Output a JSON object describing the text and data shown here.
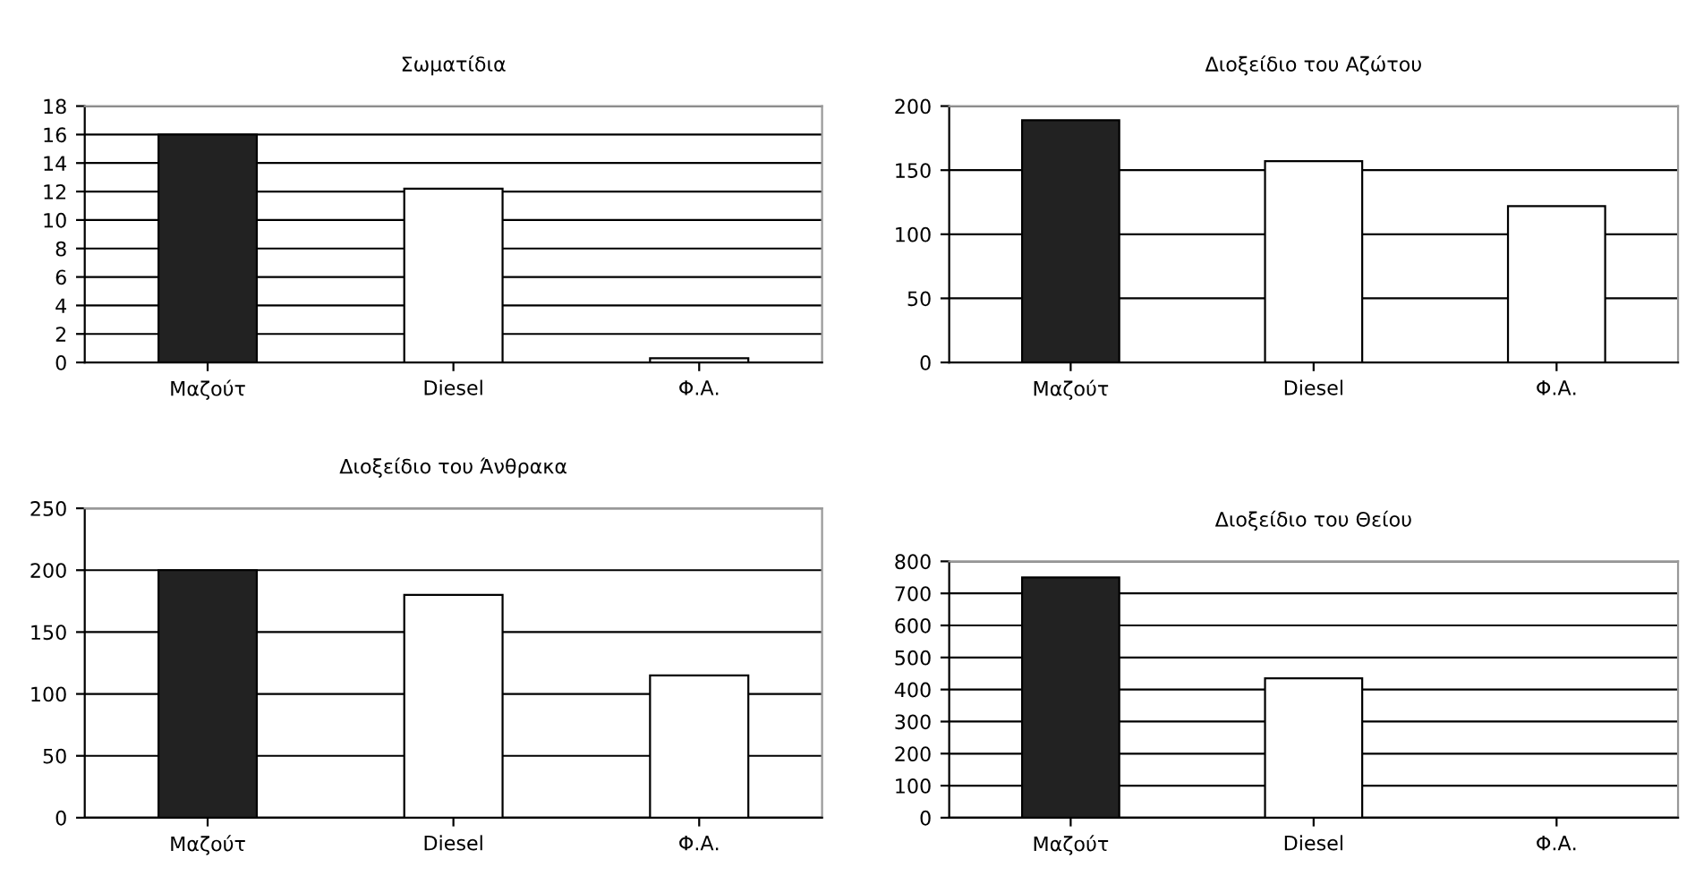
{
  "chart_data": [
    {
      "type": "bar",
      "title": "Σωματίδια",
      "categories": [
        "Μαζούτ",
        "Diesel",
        "Φ.Α."
      ],
      "values": [
        16,
        12.2,
        0.3
      ],
      "colors": [
        "#222222",
        "#ffffff",
        "#ffffff"
      ],
      "ylim": [
        0,
        18
      ],
      "yticks": [
        0,
        2,
        4,
        6,
        8,
        10,
        12,
        14,
        16,
        18
      ],
      "grid": "y"
    },
    {
      "type": "bar",
      "title": "Διοξείδιο του Αζώτου",
      "categories": [
        "Μαζούτ",
        "Diesel",
        "Φ.Α."
      ],
      "values": [
        189,
        157,
        122
      ],
      "colors": [
        "#222222",
        "#ffffff",
        "#ffffff"
      ],
      "ylim": [
        0,
        200
      ],
      "yticks": [
        0,
        50,
        100,
        150,
        200
      ],
      "grid": "y"
    },
    {
      "type": "bar",
      "title": "Διοξείδιο του Άνθρακα",
      "categories": [
        "Μαζούτ",
        "Diesel",
        "Φ.Α."
      ],
      "values": [
        200,
        180,
        115
      ],
      "colors": [
        "#222222",
        "#ffffff",
        "#ffffff"
      ],
      "ylim": [
        0,
        250
      ],
      "yticks": [
        0,
        50,
        100,
        150,
        200,
        250
      ],
      "grid": "y"
    },
    {
      "type": "bar",
      "title": "Διοξείδιο του Θείου",
      "categories": [
        "Μαζούτ",
        "Diesel",
        "Φ.Α."
      ],
      "values": [
        750,
        435,
        null
      ],
      "colors": [
        "#222222",
        "#ffffff",
        "#ffffff"
      ],
      "ylim": [
        0,
        800
      ],
      "yticks": [
        0,
        100,
        200,
        300,
        400,
        500,
        600,
        700,
        800
      ],
      "grid": "y"
    }
  ]
}
